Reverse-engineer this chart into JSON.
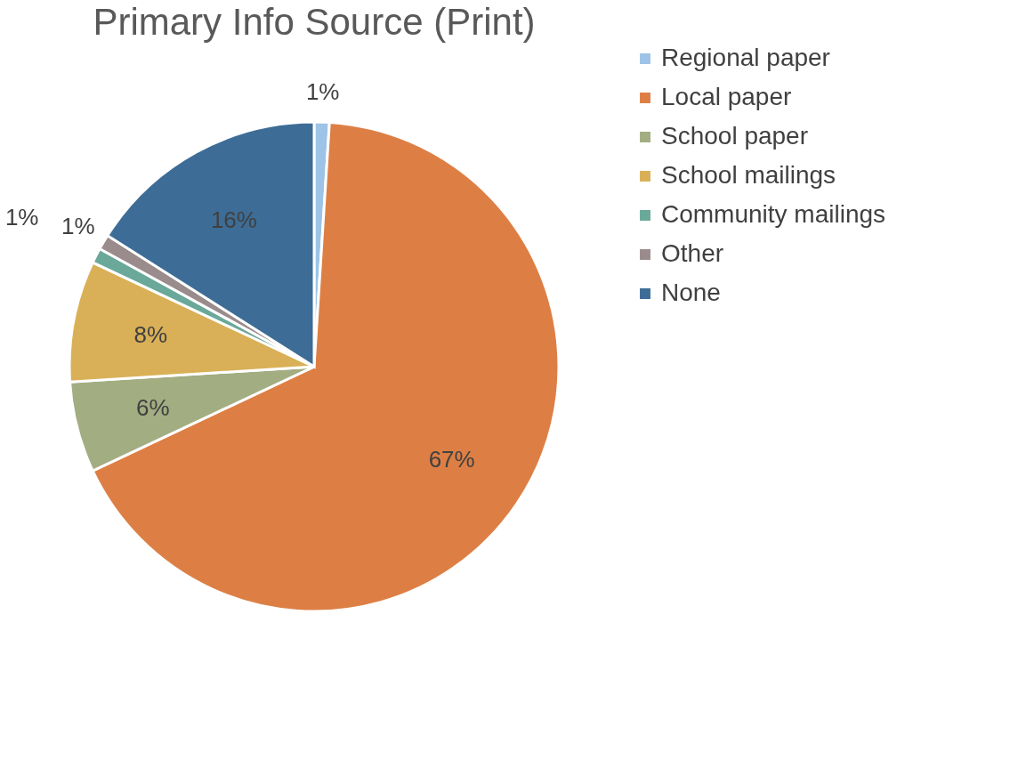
{
  "chart_data": {
    "type": "pie",
    "title": "Primary Info Source (Print)",
    "categories": [
      "Regional paper",
      "Local paper",
      "School paper",
      "School mailings",
      "Community mailings",
      "Other",
      "None"
    ],
    "values": [
      1,
      67,
      6,
      8,
      1,
      1,
      16
    ],
    "value_labels": [
      "1%",
      "67%",
      "6%",
      "8%",
      "1%",
      "1%",
      "16%"
    ],
    "colors": [
      "#9dc3e6",
      "#dd7f45",
      "#a3ad82",
      "#d9b057",
      "#6aa89a",
      "#9a8c8c",
      "#3d6d96"
    ],
    "legend": "right"
  }
}
